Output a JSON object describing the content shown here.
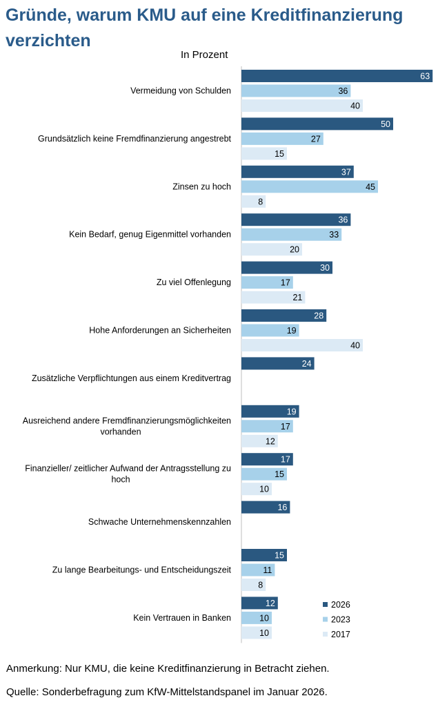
{
  "header": {
    "title": "Gründe, warum KMU auf eine Kreditfinanzierung verzichten",
    "subtitle": "In Prozent"
  },
  "footer": {
    "note": "Anmerkung: Nur KMU, die keine Kreditfinanzierung in Betracht ziehen.",
    "source": "Quelle: Sonderbefragung zum KfW-Mittelstandspanel im Januar 2026."
  },
  "chart_data": {
    "type": "bar",
    "orientation": "horizontal",
    "title": "Gründe, warum KMU auf eine Kreditfinanzierung verzichten",
    "subtitle": "In Prozent",
    "categories": [
      [
        "Vermeidung von Schulden"
      ],
      [
        "Grundsätzlich keine Fremdfinanzierung angestrebt"
      ],
      [
        "Zinsen zu hoch"
      ],
      [
        "Kein Bedarf, genug Eigenmittel vorhanden"
      ],
      [
        "Zu viel Offenlegung"
      ],
      [
        "Hohe Anforderungen an Sicherheiten"
      ],
      [
        "Zusätzliche Verpflichtungen aus einem Kreditvertrag"
      ],
      [
        "Ausreichend andere Fremdfinanzierungsmöglichkeiten",
        "vorhanden"
      ],
      [
        "Finanzieller/ zeitlicher Aufwand der Antragsstellung zu",
        "hoch"
      ],
      [
        "Schwache Unternehmenskennzahlen"
      ],
      [
        "Zu lange Bearbeitungs- und Entscheidungszeit"
      ],
      [
        "Kein Vertrauen in Banken"
      ]
    ],
    "series": [
      {
        "name": "2026",
        "color": "#2a5880",
        "values": [
          63,
          50,
          37,
          36,
          30,
          28,
          24,
          19,
          17,
          16,
          15,
          12
        ]
      },
      {
        "name": "2023",
        "color": "#a7d1ea",
        "values": [
          36,
          27,
          45,
          33,
          17,
          19,
          null,
          17,
          15,
          null,
          11,
          10
        ]
      },
      {
        "name": "2017",
        "color": "#dceaf5",
        "values": [
          40,
          15,
          8,
          20,
          21,
          40,
          null,
          12,
          10,
          null,
          8,
          10
        ]
      }
    ],
    "xlim": [
      0,
      65
    ],
    "grid": false,
    "legend": "bottom-right"
  }
}
